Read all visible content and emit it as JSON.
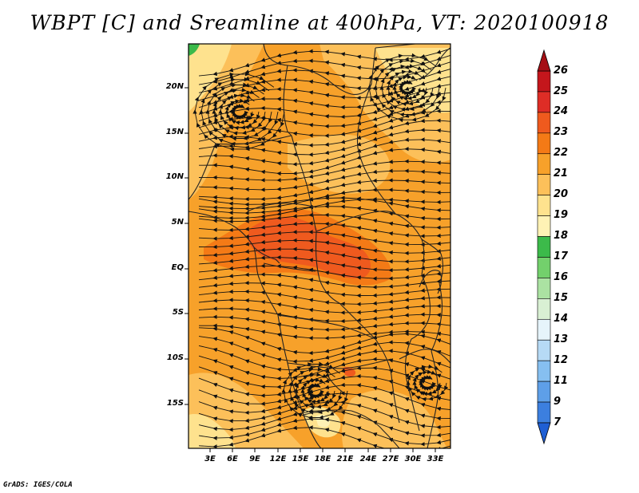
{
  "title": "WBPT [C] and Sreamline at 400hPa, VT: 2020100918",
  "footer": "GrADS: IGES/COLA",
  "lat_labels": [
    "20N",
    "15N",
    "10N",
    "5N",
    "EQ",
    "5S",
    "10S",
    "15S"
  ],
  "lon_labels": [
    "3E",
    "6E",
    "9E",
    "12E",
    "15E",
    "18E",
    "21E",
    "24E",
    "27E",
    "30E",
    "33E"
  ],
  "colorbar": {
    "labels": [
      "26",
      "25",
      "24",
      "23",
      "22",
      "21",
      "20",
      "19",
      "18",
      "17",
      "16",
      "15",
      "14",
      "13",
      "12",
      "11",
      "9",
      "7"
    ],
    "colors": [
      "#a50f15",
      "#c4161c",
      "#de2d26",
      "#ef5a1e",
      "#f47a16",
      "#f7a12a",
      "#fcc05a",
      "#fee28e",
      "#fff2b5",
      "#3cba4a",
      "#73d06c",
      "#abe2a2",
      "#d9f0d3",
      "#e6f4fb",
      "#b6daf5",
      "#86bff0",
      "#5e9fe8",
      "#3c7fdf",
      "#1f5fd4"
    ]
  },
  "map": {
    "variable": "WBPT",
    "units": "C",
    "level": "400hPa",
    "valid_time": "2020100918",
    "colors": {
      "dominant": "#f7a12a",
      "light": "#fcc05a",
      "pale": "#fee28e",
      "hot": "#f47a16",
      "hotter": "#ef5a1e",
      "green": "#3cba4a"
    }
  }
}
